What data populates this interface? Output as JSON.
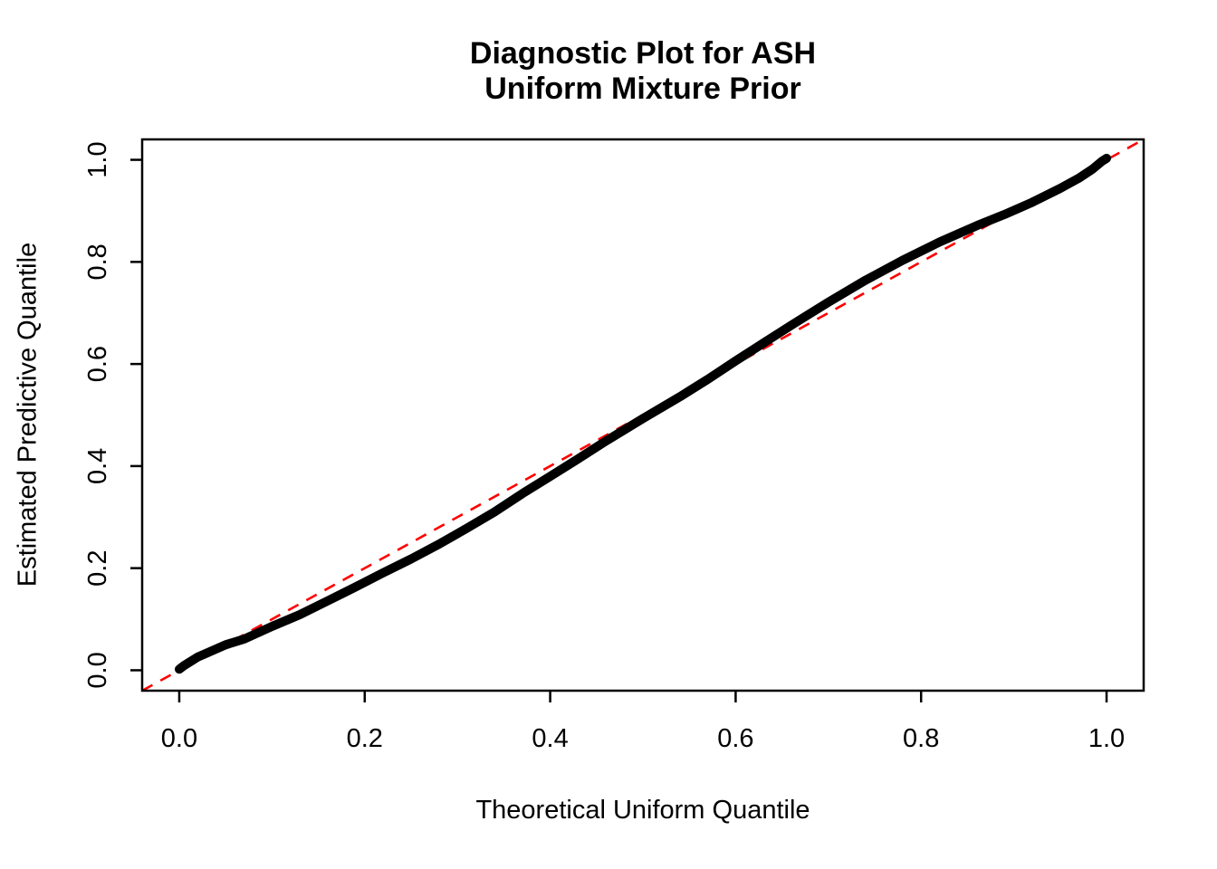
{
  "chart_data": {
    "type": "scatter",
    "title": "Diagnostic Plot for ASH\nUniform Mixture Prior",
    "title_lines": [
      "Diagnostic Plot for ASH",
      "Uniform Mixture Prior"
    ],
    "xlabel": "Theoretical Uniform Quantile",
    "ylabel": "Estimated Predictive Quantile",
    "xlim": [
      -0.04,
      1.04
    ],
    "ylim": [
      -0.04,
      1.04
    ],
    "grid": false,
    "legend": false,
    "x_axis": {
      "tick_values": [
        0.0,
        0.2,
        0.4,
        0.6,
        0.8,
        1.0
      ],
      "tick_labels": [
        "0.0",
        "0.2",
        "0.4",
        "0.6",
        "0.8",
        "1.0"
      ]
    },
    "y_axis": {
      "tick_values": [
        0.0,
        0.2,
        0.4,
        0.6,
        0.8,
        1.0
      ],
      "tick_labels": [
        "0.0",
        "0.2",
        "0.4",
        "0.6",
        "0.8",
        "1.0"
      ],
      "label_rotation": 90
    },
    "colors": {
      "curve": "#000000",
      "reference_line": "#FF0000",
      "frame": "#000000"
    },
    "series": [
      {
        "name": "estimated-predictive-quantiles",
        "type": "points-dense-curve",
        "color": "#000000",
        "points": [
          [
            0.0,
            0.002
          ],
          [
            0.005,
            0.009
          ],
          [
            0.012,
            0.017
          ],
          [
            0.02,
            0.026
          ],
          [
            0.03,
            0.034
          ],
          [
            0.05,
            0.05
          ],
          [
            0.07,
            0.061
          ],
          [
            0.1,
            0.086
          ],
          [
            0.13,
            0.109
          ],
          [
            0.16,
            0.136
          ],
          [
            0.19,
            0.163
          ],
          [
            0.22,
            0.191
          ],
          [
            0.25,
            0.218
          ],
          [
            0.28,
            0.247
          ],
          [
            0.31,
            0.278
          ],
          [
            0.34,
            0.31
          ],
          [
            0.37,
            0.346
          ],
          [
            0.4,
            0.38
          ],
          [
            0.43,
            0.414
          ],
          [
            0.46,
            0.449
          ],
          [
            0.5,
            0.493
          ],
          [
            0.54,
            0.536
          ],
          [
            0.57,
            0.57
          ],
          [
            0.6,
            0.606
          ],
          [
            0.63,
            0.641
          ],
          [
            0.66,
            0.676
          ],
          [
            0.7,
            0.721
          ],
          [
            0.74,
            0.764
          ],
          [
            0.78,
            0.803
          ],
          [
            0.82,
            0.839
          ],
          [
            0.86,
            0.871
          ],
          [
            0.89,
            0.893
          ],
          [
            0.92,
            0.917
          ],
          [
            0.95,
            0.944
          ],
          [
            0.97,
            0.964
          ],
          [
            0.985,
            0.982
          ],
          [
            0.995,
            0.997
          ],
          [
            1.0,
            1.003
          ]
        ]
      },
      {
        "name": "identity-reference-line",
        "type": "line",
        "style": "dashed",
        "color": "#FF0000",
        "from": [
          -0.04,
          -0.04
        ],
        "to": [
          1.04,
          1.04
        ]
      }
    ]
  }
}
